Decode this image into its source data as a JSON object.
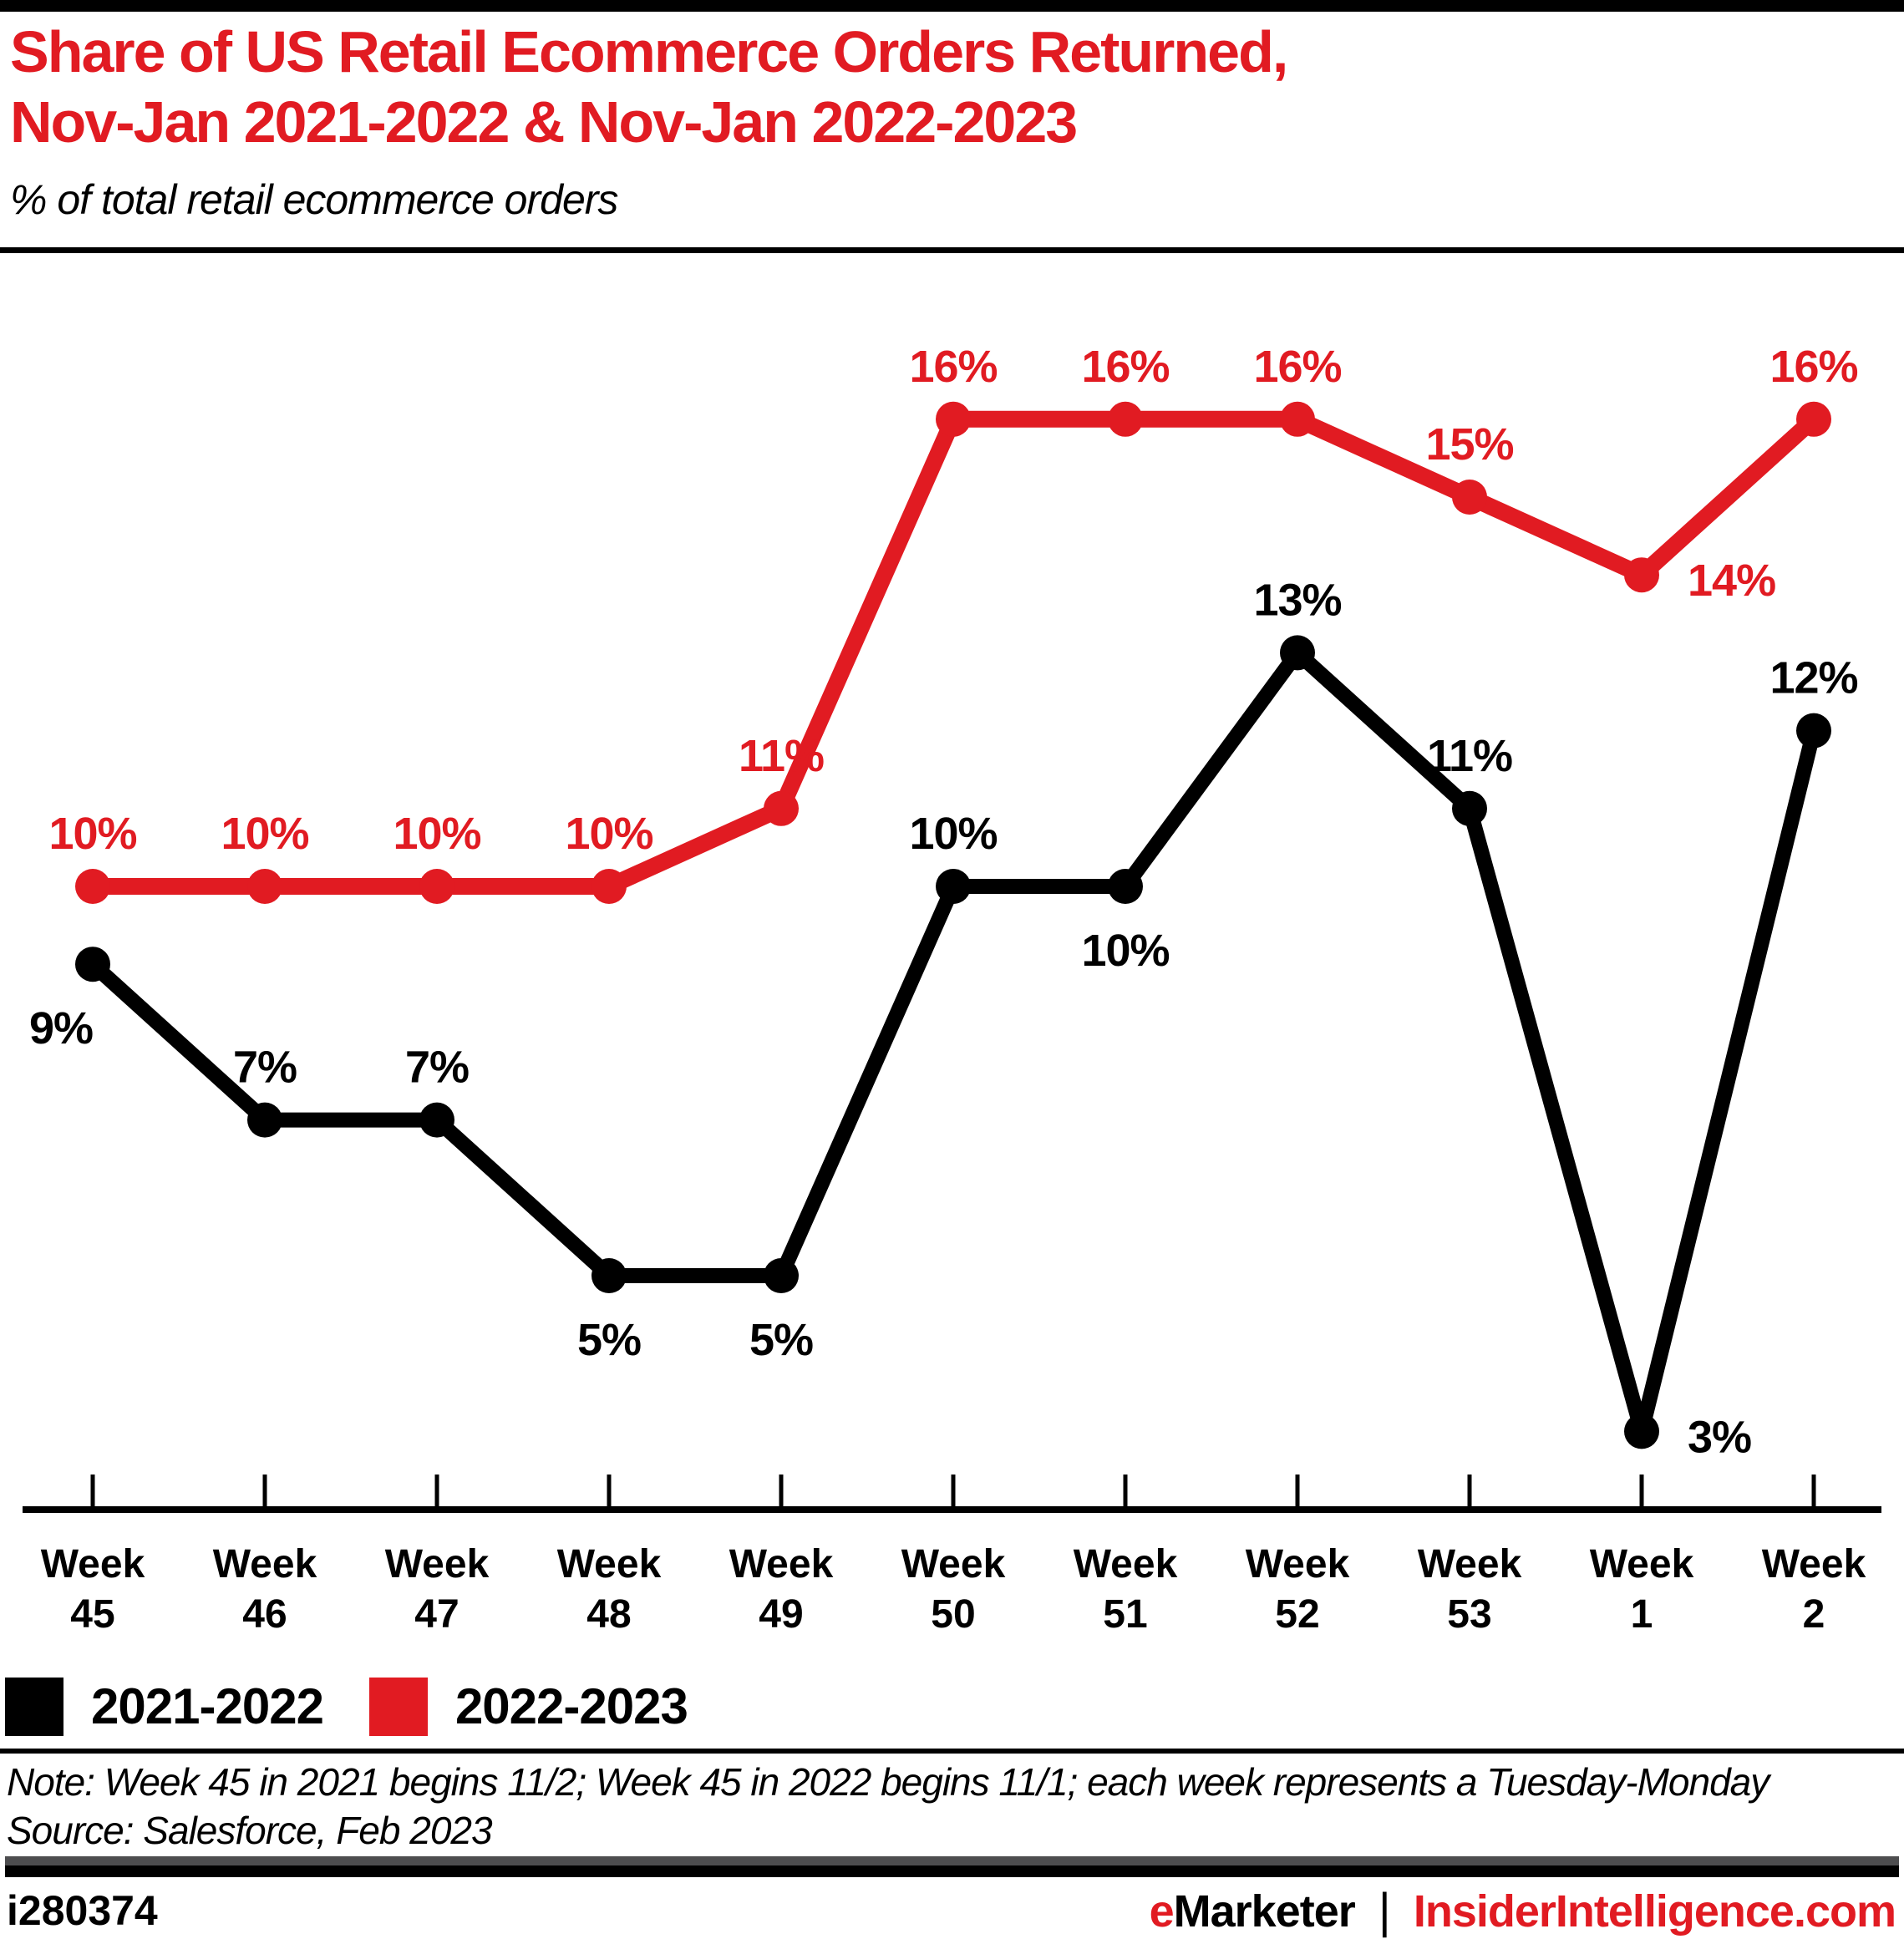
{
  "colors": {
    "accent_red": "#e11b22",
    "black": "#000000",
    "gray_bar": "#4d4d4f"
  },
  "header": {
    "title_line1": "Share of US Retail Ecommerce Orders Returned,",
    "title_line2": "Nov-Jan 2021-2022 & Nov-Jan 2022-2023",
    "subtitle": "% of total retail ecommerce orders"
  },
  "chart_data": {
    "type": "line",
    "categories": [
      "Week 45",
      "Week 46",
      "Week 47",
      "Week 48",
      "Week 49",
      "Week 50",
      "Week 51",
      "Week 52",
      "Week 53",
      "Week 1",
      "Week 2"
    ],
    "series": [
      {
        "name": "2021-2022",
        "color": "#000000",
        "values": [
          9,
          7,
          7,
          5,
          5,
          10,
          10,
          13,
          11,
          3,
          12
        ],
        "label_pos": [
          "below-left",
          "above",
          "above",
          "below",
          "below",
          "above",
          "below",
          "above",
          "above",
          "right",
          "above"
        ]
      },
      {
        "name": "2022-2023",
        "color": "#e11b22",
        "values": [
          10,
          10,
          10,
          10,
          11,
          16,
          16,
          16,
          15,
          14,
          16
        ],
        "label_pos": [
          "above",
          "above",
          "above",
          "above",
          "above",
          "above",
          "above",
          "above",
          "above",
          "right",
          "above"
        ]
      }
    ],
    "value_suffix": "%",
    "ylim": [
      2,
      18
    ],
    "grid": false,
    "legend_position": "bottom-left"
  },
  "note": {
    "note_line": "Note: Week 45 in 2021 begins 11/2; Week 45 in 2022 begins 11/1; each week represents a Tuesday-Monday",
    "source_line": "Source: Salesforce, Feb 2023"
  },
  "footer": {
    "chart_id": "i280374",
    "brand_e": "e",
    "brand_rest": "Marketer",
    "separator": "|",
    "site": "InsiderIntelligence.com"
  }
}
